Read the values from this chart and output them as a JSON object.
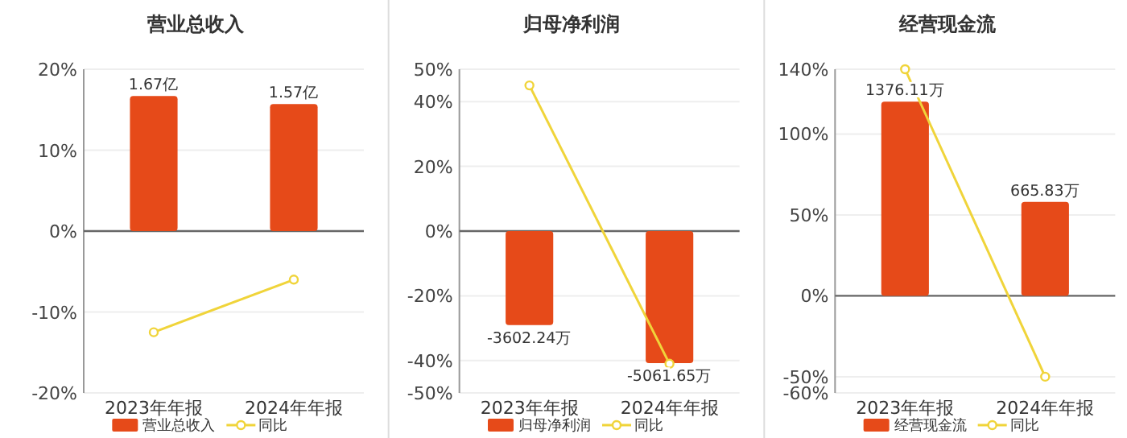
{
  "chart_data": [
    {
      "type": "bar",
      "title": "营业总收入",
      "categories": [
        "2023年年报",
        "2024年年报"
      ],
      "series": [
        {
          "name": "营业总收入",
          "axis": "y2",
          "color": "#e64a19",
          "values": [
            1.67,
            1.57
          ],
          "value_labels": [
            "1.67亿",
            "1.57亿"
          ]
        },
        {
          "name": "同比",
          "type": "line",
          "color": "#f0d43a",
          "values": [
            -12.5,
            -6
          ]
        }
      ],
      "ylim": [
        -20,
        20
      ],
      "yticks": [
        {
          "value": -20,
          "label": "-20%"
        },
        {
          "value": -10,
          "label": "-10%"
        },
        {
          "value": 0,
          "label": "0%"
        },
        {
          "value": 10,
          "label": "10%"
        },
        {
          "value": 20,
          "label": "20%"
        }
      ],
      "y2lim": [
        -2,
        2
      ],
      "grid": "y",
      "legend": "bottom",
      "marker": "circle"
    },
    {
      "type": "bar",
      "title": "归母净利润",
      "categories": [
        "2023年年报",
        "2024年年报"
      ],
      "series": [
        {
          "name": "归母净利润",
          "axis": "y2",
          "color": "#e64a19",
          "values": [
            -3602.24,
            -5061.65
          ],
          "value_labels": [
            "-3602.24万",
            "-5061.65万"
          ]
        },
        {
          "name": "同比",
          "type": "line",
          "color": "#f0d43a",
          "values": [
            45,
            -41
          ]
        }
      ],
      "ylim": [
        -50,
        50
      ],
      "yticks": [
        {
          "value": -50,
          "label": "-50%"
        },
        {
          "value": -40,
          "label": "-40%"
        },
        {
          "value": -20,
          "label": "-20%"
        },
        {
          "value": 0,
          "label": "0%"
        },
        {
          "value": 20,
          "label": "20%"
        },
        {
          "value": 40,
          "label": "40%"
        },
        {
          "value": 50,
          "label": "50%"
        }
      ],
      "y2lim": [
        -6200,
        6200
      ],
      "grid": "y",
      "legend": "bottom",
      "marker": "circle"
    },
    {
      "type": "bar",
      "title": "经营现金流",
      "categories": [
        "2023年年报",
        "2024年年报"
      ],
      "series": [
        {
          "name": "经营现金流",
          "axis": "y2",
          "color": "#e64a19",
          "values": [
            1376.11,
            665.83
          ],
          "value_labels": [
            "1376.11万",
            "665.83万"
          ]
        },
        {
          "name": "同比",
          "type": "line",
          "color": "#f0d43a",
          "values": [
            140,
            -50
          ]
        }
      ],
      "ylim": [
        -60,
        140
      ],
      "yticks": [
        {
          "value": -60,
          "label": "-60%"
        },
        {
          "value": -50,
          "label": "-50%"
        },
        {
          "value": 0,
          "label": "0%"
        },
        {
          "value": 50,
          "label": "50%"
        },
        {
          "value": 100,
          "label": "100%"
        },
        {
          "value": 140,
          "label": "140%"
        }
      ],
      "y2lim": [
        -688,
        1605
      ],
      "grid": "y",
      "legend": "bottom",
      "marker": "circle"
    }
  ]
}
